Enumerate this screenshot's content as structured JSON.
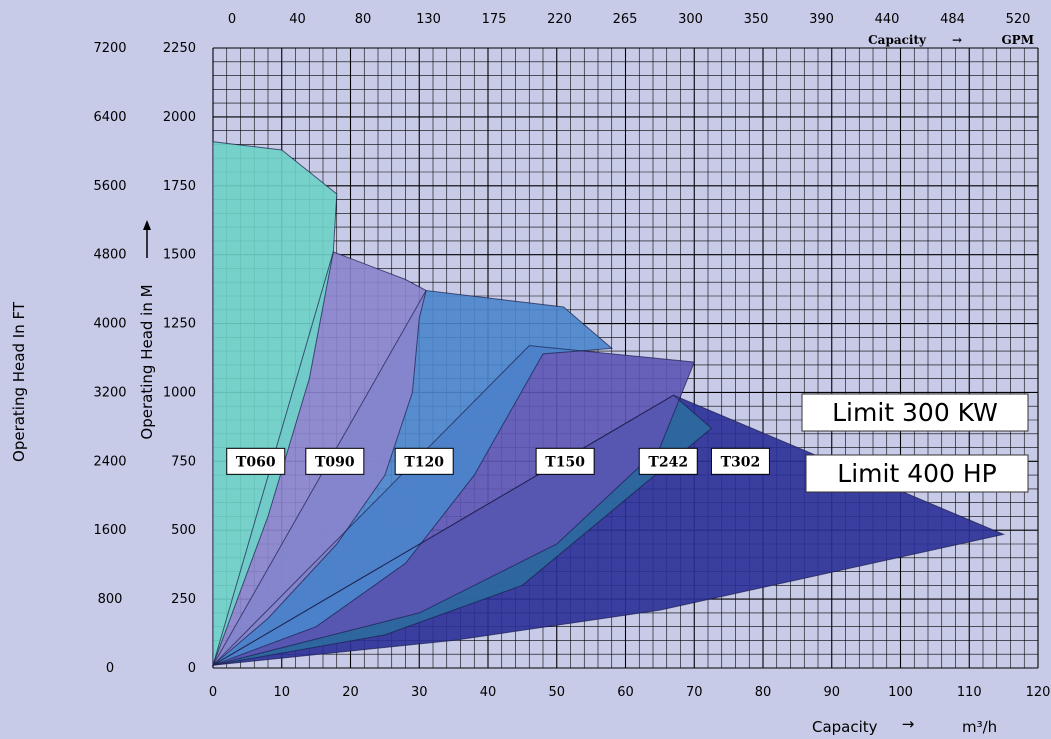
{
  "chart_data": {
    "type": "area",
    "xlabel": "Capacity",
    "x_unit": "m³/h",
    "x_arrow": "→",
    "ylabel_m": "Operating Head in M",
    "ylabel_ft": "Operating Head In FT",
    "top_axis_label": "Capacity",
    "top_axis_unit": "GPM",
    "top_axis_arrow": "→",
    "xlim": [
      0,
      120
    ],
    "ylim": [
      0,
      2250
    ],
    "x_ticks": [
      0,
      10,
      20,
      30,
      40,
      50,
      60,
      70,
      80,
      90,
      100,
      110,
      120
    ],
    "y_ticks_m": [
      0,
      250,
      500,
      750,
      1000,
      1250,
      1500,
      1750,
      2000,
      2250
    ],
    "y_ticks_ft": [
      0,
      800,
      1600,
      2400,
      3200,
      4000,
      4800,
      5600,
      6400,
      7200
    ],
    "gpm_ticks": [
      0,
      40,
      80,
      130,
      175,
      220,
      265,
      300,
      350,
      390,
      440,
      484,
      520
    ],
    "grid": true,
    "series": [
      {
        "name": "T302",
        "color": "#2a2f96",
        "polygon": [
          [
            0,
            10
          ],
          [
            67,
            990
          ],
          [
            115,
            485
          ],
          [
            65,
            210
          ],
          [
            35,
            100
          ],
          [
            0,
            10
          ]
        ]
      },
      {
        "name": "T242",
        "color": "#2d6a9e",
        "polygon": [
          [
            0,
            10
          ],
          [
            67,
            990
          ],
          [
            72.5,
            870
          ],
          [
            45,
            300
          ],
          [
            25,
            120
          ],
          [
            0,
            10
          ]
        ]
      },
      {
        "name": "T150",
        "color": "#5c55b4",
        "polygon": [
          [
            0,
            10
          ],
          [
            46,
            1170
          ],
          [
            70,
            1110
          ],
          [
            65,
            800
          ],
          [
            50,
            450
          ],
          [
            30,
            200
          ],
          [
            0,
            10
          ]
        ]
      },
      {
        "name": "T120",
        "color": "#4a86cc",
        "polygon": [
          [
            0,
            10
          ],
          [
            31,
            1370
          ],
          [
            51,
            1310
          ],
          [
            58,
            1160
          ],
          [
            48,
            1140
          ],
          [
            38,
            700
          ],
          [
            28,
            380
          ],
          [
            15,
            150
          ],
          [
            0,
            10
          ]
        ]
      },
      {
        "name": "T090",
        "color": "#8a84cc",
        "polygon": [
          [
            0,
            10
          ],
          [
            17.5,
            1510
          ],
          [
            28,
            1410
          ],
          [
            31,
            1370
          ],
          [
            30,
            1270
          ],
          [
            29,
            1000
          ],
          [
            25,
            700
          ],
          [
            18,
            450
          ],
          [
            8,
            180
          ],
          [
            0,
            10
          ]
        ]
      },
      {
        "name": "T060",
        "color": "#6dd1c8",
        "polygon": [
          [
            0,
            10
          ],
          [
            0,
            1910
          ],
          [
            10,
            1880
          ],
          [
            18,
            1720
          ],
          [
            17.5,
            1510
          ],
          [
            14,
            1050
          ],
          [
            8,
            550
          ],
          [
            0,
            10
          ]
        ]
      }
    ],
    "model_labels": [
      {
        "text": "T060",
        "x": 2,
        "y": 750
      },
      {
        "text": "T090",
        "x": 13.5,
        "y": 750
      },
      {
        "text": "T120",
        "x": 26.5,
        "y": 750
      },
      {
        "text": "T150",
        "x": 47,
        "y": 750
      },
      {
        "text": "T242",
        "x": 62,
        "y": 750
      },
      {
        "text": "T302",
        "x": 72.5,
        "y": 750
      }
    ],
    "limits": [
      {
        "text": "Limit 300 KW"
      },
      {
        "text": "Limit 400 HP"
      }
    ]
  }
}
